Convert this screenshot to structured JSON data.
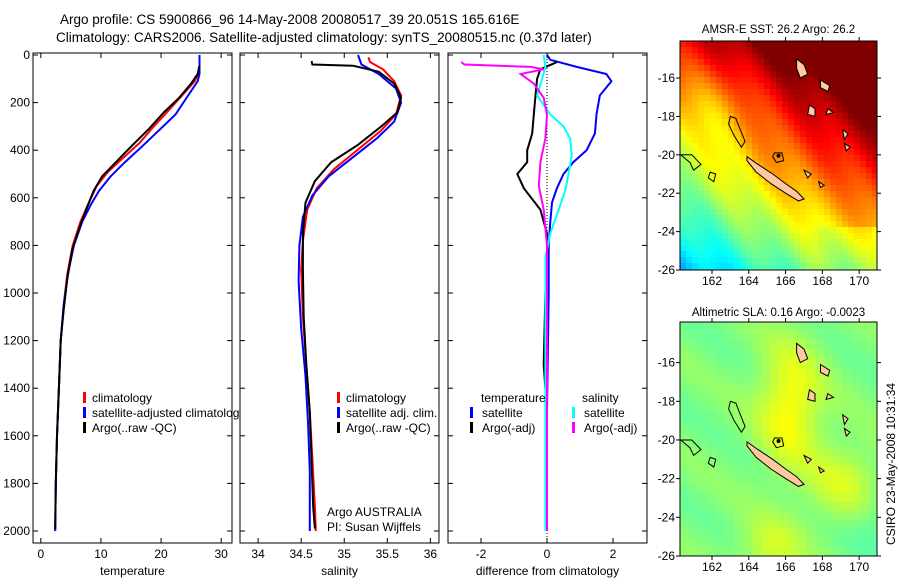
{
  "title_line1": "Argo profile: CS 5900866_96 14-May-2008 20080517_39 20.051S 165.616E",
  "title_line2": "Climatology: CARS2006. Satellite-adjusted climatology: synTS_20080515.nc (0.37d later)",
  "side_label": "CSIRO 23-May-2008 10:31:34",
  "colors": {
    "climatology": "#ff0000",
    "satellite": "#0000ff",
    "argo": "#000000",
    "sal_satellite": "#00ffff",
    "sal_argo": "#ff00ff",
    "land": "#ffc8a0"
  },
  "chart_data": [
    {
      "type": "line",
      "name": "temperature-panel",
      "xlabel": "temperature",
      "ylabel": "",
      "xlim": [
        -1.3,
        31.8
      ],
      "ylim": [
        2113,
        -10
      ],
      "xticks": [
        "0",
        "10",
        "20",
        "30"
      ],
      "xtick_values": [
        0,
        10,
        20,
        30
      ],
      "yticks": [
        "0",
        "200",
        "400",
        "600",
        "800",
        "1000",
        "1200",
        "1400",
        "1600",
        "1800",
        "2000"
      ],
      "ytick_values": [
        0,
        200,
        400,
        600,
        800,
        1000,
        1200,
        1400,
        1600,
        1800,
        2000
      ],
      "legend": {
        "placement": "center-right",
        "entries": [
          "climatology",
          "satellite-adjusted climatology",
          "Argo(..raw -QC)"
        ]
      },
      "series": [
        {
          "name": "climatology",
          "color": "#ff0000",
          "points": [
            [
              26.3,
              50
            ],
            [
              26.2,
              80
            ],
            [
              25.6,
              110
            ],
            [
              23.5,
              170
            ],
            [
              21,
              240
            ],
            [
              18.8,
              300
            ],
            [
              16.4,
              370
            ],
            [
              13.8,
              430
            ],
            [
              11.2,
              490
            ],
            [
              9.3,
              550
            ],
            [
              8,
              620
            ],
            [
              6.6,
              700
            ],
            [
              5.3,
              800
            ],
            [
              4.4,
              920
            ],
            [
              3.8,
              1050
            ],
            [
              3.3,
              1200
            ],
            [
              3,
              1400
            ],
            [
              2.7,
              1600
            ],
            [
              2.5,
              1800
            ],
            [
              2.4,
              2000
            ]
          ]
        },
        {
          "name": "satellite-adjusted climatology",
          "color": "#0000ff",
          "points": [
            [
              26.4,
              0
            ],
            [
              26.4,
              80
            ],
            [
              26.1,
              110
            ],
            [
              24.5,
              170
            ],
            [
              22.4,
              250
            ],
            [
              19.5,
              320
            ],
            [
              16.6,
              390
            ],
            [
              14,
              450
            ],
            [
              11.6,
              510
            ],
            [
              9.7,
              570
            ],
            [
              8.3,
              630
            ],
            [
              6.9,
              700
            ],
            [
              5.5,
              800
            ],
            [
              4.5,
              920
            ],
            [
              3.8,
              1050
            ],
            [
              3.3,
              1200
            ],
            [
              3,
              1400
            ],
            [
              2.7,
              1600
            ],
            [
              2.5,
              1800
            ],
            [
              2.4,
              2000
            ]
          ]
        },
        {
          "name": "Argo(..raw -QC)",
          "color": "#000000",
          "points": [
            [
              26.4,
              45
            ],
            [
              26.1,
              80
            ],
            [
              25,
              120
            ],
            [
              23,
              180
            ],
            [
              20.5,
              240
            ],
            [
              18,
              310
            ],
            [
              15.2,
              380
            ],
            [
              12.5,
              450
            ],
            [
              10.2,
              510
            ],
            [
              8.8,
              570
            ],
            [
              7.7,
              640
            ],
            [
              6.5,
              720
            ],
            [
              5.2,
              820
            ],
            [
              4.4,
              940
            ],
            [
              3.8,
              1070
            ],
            [
              3.3,
              1200
            ],
            [
              3,
              1400
            ],
            [
              2.7,
              1600
            ],
            [
              2.5,
              1800
            ],
            [
              2.4,
              1990
            ]
          ]
        }
      ]
    },
    {
      "type": "line",
      "name": "salinity-panel",
      "xlabel": "salinity",
      "xlim": [
        33.79,
        36.1
      ],
      "ylim": [
        2113,
        -10
      ],
      "xticks": [
        "34",
        "34.5",
        "35",
        "35.5",
        "36"
      ],
      "xtick_values": [
        34,
        34.5,
        35,
        35.5,
        36
      ],
      "legend": {
        "placement": "center-right",
        "entries": [
          "climatology",
          "satellite adj. clim.",
          "Argo(..raw -QC)"
        ]
      },
      "annotation": [
        "Argo AUSTRALIA",
        "PI: Susan Wijffels"
      ],
      "series": [
        {
          "name": "climatology",
          "color": "#ff0000",
          "points": [
            [
              35.28,
              10
            ],
            [
              35.3,
              30
            ],
            [
              35.45,
              60
            ],
            [
              35.58,
              110
            ],
            [
              35.66,
              170
            ],
            [
              35.6,
              250
            ],
            [
              35.42,
              320
            ],
            [
              35.15,
              400
            ],
            [
              34.88,
              480
            ],
            [
              34.68,
              560
            ],
            [
              34.57,
              650
            ],
            [
              34.52,
              780
            ],
            [
              34.5,
              900
            ],
            [
              34.52,
              1100
            ],
            [
              34.56,
              1300
            ],
            [
              34.6,
              1500
            ],
            [
              34.63,
              1700
            ],
            [
              34.66,
              1900
            ],
            [
              34.67,
              2000
            ]
          ]
        },
        {
          "name": "satellite adj. clim.",
          "color": "#0000ff",
          "points": [
            [
              35.16,
              0
            ],
            [
              35.2,
              40
            ],
            [
              35.4,
              80
            ],
            [
              35.6,
              140
            ],
            [
              35.66,
              200
            ],
            [
              35.58,
              280
            ],
            [
              35.38,
              350
            ],
            [
              35.1,
              430
            ],
            [
              34.82,
              510
            ],
            [
              34.63,
              590
            ],
            [
              34.52,
              680
            ],
            [
              34.48,
              800
            ],
            [
              34.47,
              950
            ],
            [
              34.5,
              1150
            ],
            [
              34.55,
              1350
            ],
            [
              34.58,
              1550
            ],
            [
              34.6,
              1750
            ],
            [
              34.6,
              1950
            ],
            [
              34.6,
              2000
            ]
          ]
        },
        {
          "name": "Argo(..raw -QC)",
          "color": "#000000",
          "points": [
            [
              34.62,
              25
            ],
            [
              34.63,
              40
            ],
            [
              35.1,
              45
            ],
            [
              35.4,
              70
            ],
            [
              35.58,
              120
            ],
            [
              35.66,
              180
            ],
            [
              35.62,
              240
            ],
            [
              35.43,
              300
            ],
            [
              35.15,
              380
            ],
            [
              34.85,
              450
            ],
            [
              34.66,
              530
            ],
            [
              34.55,
              620
            ],
            [
              34.52,
              750
            ],
            [
              34.52,
              900
            ],
            [
              34.53,
              1100
            ],
            [
              34.56,
              1300
            ],
            [
              34.6,
              1500
            ],
            [
              34.62,
              1700
            ],
            [
              34.64,
              1900
            ],
            [
              34.66,
              1990
            ]
          ]
        }
      ]
    },
    {
      "type": "line",
      "name": "difference-panel",
      "xlabel": "difference from climatology",
      "xlim": [
        -3.0,
        3.03
      ],
      "ylim": [
        2113,
        -10
      ],
      "xticks": [
        "-2",
        "0",
        "2"
      ],
      "xtick_values": [
        -2,
        0,
        2
      ],
      "legend": {
        "placement": "center",
        "temperature_heading": "temperature",
        "salinity_heading": "salinity",
        "entries": [
          {
            "label": "satellite",
            "color": "#0000ff"
          },
          {
            "label": "Argo(-adj)",
            "color": "#000000"
          },
          {
            "label": "satellite",
            "color": "#00ffff"
          },
          {
            "label": "Argo(-adj)",
            "color": "#ff00ff"
          }
        ]
      },
      "series": [
        {
          "name": "temperature satellite",
          "color": "#0000ff",
          "points": [
            [
              0,
              0
            ],
            [
              0.1,
              20
            ],
            [
              0.9,
              50
            ],
            [
              1.8,
              80
            ],
            [
              1.95,
              110
            ],
            [
              1.6,
              170
            ],
            [
              1.5,
              250
            ],
            [
              1.45,
              330
            ],
            [
              1.2,
              400
            ],
            [
              0.8,
              450
            ],
            [
              0.5,
              500
            ],
            [
              0.3,
              560
            ],
            [
              0.15,
              620
            ],
            [
              0.1,
              700
            ],
            [
              0.05,
              800
            ],
            [
              0.05,
              1000
            ],
            [
              0,
              1500
            ],
            [
              0,
              2000
            ]
          ]
        },
        {
          "name": "temperature Argo(-adj)",
          "color": "#000000",
          "points": [
            [
              0.3,
              30
            ],
            [
              -0.2,
              60
            ],
            [
              -0.3,
              100
            ],
            [
              -0.35,
              170
            ],
            [
              -0.4,
              250
            ],
            [
              -0.45,
              330
            ],
            [
              -0.6,
              400
            ],
            [
              -0.6,
              450
            ],
            [
              -0.9,
              500
            ],
            [
              -0.7,
              560
            ],
            [
              -0.2,
              650
            ],
            [
              0,
              750
            ],
            [
              0,
              850
            ],
            [
              -0.05,
              1000
            ],
            [
              -0.1,
              1300
            ],
            [
              0,
              1500
            ],
            [
              0,
              2000
            ]
          ]
        },
        {
          "name": "salinity satellite",
          "color": "#00ffff",
          "points": [
            [
              -0.1,
              0
            ],
            [
              -0.05,
              50
            ],
            [
              -0.15,
              100
            ],
            [
              -0.3,
              170
            ],
            [
              0.1,
              250
            ],
            [
              0.5,
              300
            ],
            [
              0.7,
              350
            ],
            [
              0.75,
              420
            ],
            [
              0.65,
              500
            ],
            [
              0.55,
              570
            ],
            [
              0.35,
              650
            ],
            [
              0.1,
              750
            ],
            [
              -0.05,
              850
            ],
            [
              -0.05,
              1000
            ],
            [
              -0.05,
              1500
            ],
            [
              -0.05,
              2000
            ]
          ]
        },
        {
          "name": "salinity Argo(-adj)",
          "color": "#ff00ff",
          "points": [
            [
              -2.6,
              30
            ],
            [
              -2.5,
              40
            ],
            [
              -0.5,
              50
            ],
            [
              -0.1,
              60
            ],
            [
              -0.8,
              80
            ],
            [
              -0.4,
              120
            ],
            [
              -0.1,
              180
            ],
            [
              0,
              250
            ],
            [
              -0.05,
              350
            ],
            [
              -0.2,
              450
            ],
            [
              -0.25,
              550
            ],
            [
              -0.1,
              650
            ],
            [
              0,
              800
            ],
            [
              0,
              1000
            ],
            [
              0,
              1500
            ],
            [
              0,
              2000
            ]
          ]
        }
      ]
    }
  ],
  "maps": [
    {
      "name": "sst-map",
      "title": "AMSR-E SST: 26.2 Argo: 26.2",
      "xticks": [
        "162",
        "164",
        "166",
        "168",
        "170"
      ],
      "xtick_values": [
        162,
        164,
        166,
        168,
        170
      ],
      "yticks": [
        "-16",
        "-18",
        "-20",
        "-22",
        "-24",
        "-26"
      ],
      "ytick_values": [
        -16,
        -18,
        -20,
        -22,
        -24,
        -26
      ],
      "lon_range": [
        160.26,
        170.97
      ],
      "lat_range": [
        -26,
        -14.07
      ]
    },
    {
      "name": "sla-map",
      "title": "Altimetric SLA: 0.16 Argo: -0.0023",
      "xticks": [
        "162",
        "164",
        "166",
        "168",
        "170"
      ],
      "xtick_values": [
        162,
        164,
        166,
        168,
        170
      ],
      "yticks": [
        "-16",
        "-18",
        "-20",
        "-22",
        "-24",
        "-26"
      ],
      "ytick_values": [
        -16,
        -18,
        -20,
        -22,
        -24,
        -26
      ],
      "lon_range": [
        160.26,
        170.97
      ],
      "lat_range": [
        -26,
        -13.9
      ]
    }
  ]
}
